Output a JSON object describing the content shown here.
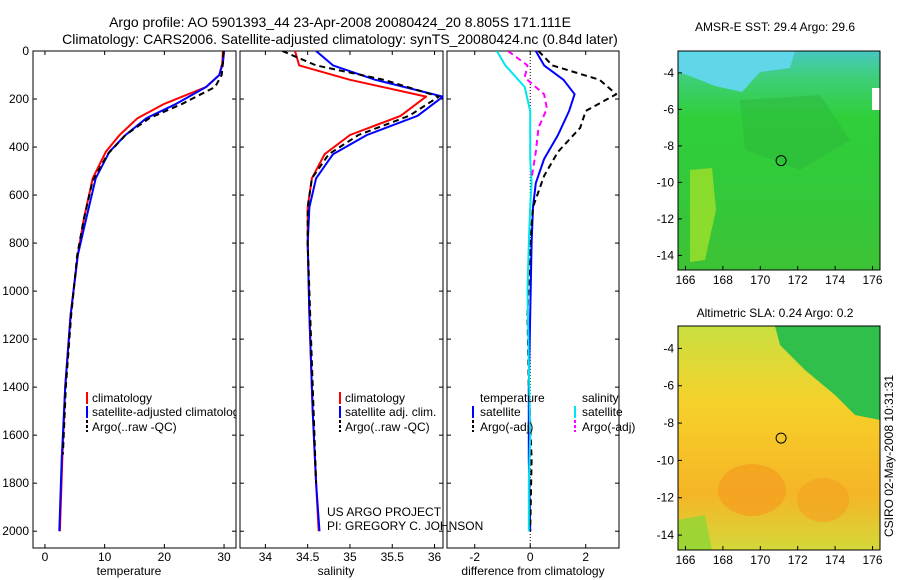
{
  "header": {
    "title_line1": "Argo profile: AO 5901393_44 23-Apr-2008 20080424_20 8.805S 171.111E",
    "title_line2": "Climatology: CARS2006. Satellite-adjusted climatology: synTS_20080424.nc (0.84d later)"
  },
  "credits": {
    "project": "US ARGO PROJECT",
    "pi": "PI: GREGORY C. JOHNSON",
    "stamp": "CSIRO 02-May-2008 10:31:31"
  },
  "colors": {
    "climatology": "#ff0000",
    "satellite": "#0000ff",
    "argo": "#000000",
    "salinity_satellite": "#00e5ee",
    "salinity_argo": "#ff00ff"
  },
  "chart_data": [
    {
      "id": "temperature",
      "type": "line",
      "xlabel": "temperature",
      "ylabel": "",
      "xlim": [
        -2,
        32
      ],
      "ylim": [
        0,
        2070
      ],
      "y_reversed": true,
      "xticks": [
        0,
        10,
        20,
        30
      ],
      "xtick_labels": [
        "0",
        "10",
        "20",
        "30"
      ],
      "yticks": [
        0,
        200,
        400,
        600,
        800,
        1000,
        1200,
        1400,
        1600,
        1800,
        2000
      ],
      "ytick_labels": [
        "0",
        "200",
        "400",
        "600",
        "800",
        "1000",
        "1200",
        "1400",
        "1600",
        "1800",
        "2000"
      ],
      "legend": {
        "position": "lower-center",
        "entries": [
          "climatology",
          "satellite-adjusted climatology",
          "Argo(..raw -QC)"
        ]
      },
      "series": [
        {
          "name": "climatology",
          "color": "#ff0000",
          "style": "solid",
          "x": [
            29.8,
            29.7,
            29.2,
            27.0,
            20.0,
            15.5,
            12.5,
            10.2,
            8.0,
            6.5,
            5.5,
            4.3,
            3.4,
            2.9,
            2.5
          ],
          "y": [
            0,
            50,
            100,
            150,
            220,
            280,
            350,
            420,
            530,
            700,
            850,
            1100,
            1400,
            1700,
            2000
          ]
        },
        {
          "name": "satellite-adjusted climatology",
          "color": "#0000ff",
          "style": "solid",
          "x": [
            30.0,
            29.8,
            29.2,
            27.0,
            22.0,
            17.0,
            13.5,
            10.8,
            8.5,
            6.9,
            5.5,
            4.3,
            3.4,
            2.8,
            2.4
          ],
          "y": [
            0,
            50,
            100,
            150,
            220,
            280,
            350,
            420,
            530,
            700,
            850,
            1100,
            1400,
            1700,
            2000
          ]
        },
        {
          "name": "Argo(..raw -QC)",
          "color": "#000000",
          "style": "dashed",
          "x": [
            29.9,
            29.8,
            29.6,
            28.5,
            23.0,
            17.5,
            13.5,
            10.5,
            8.0,
            6.5,
            5.4,
            4.4,
            3.5,
            3.0
          ],
          "y": [
            0,
            50,
            100,
            150,
            220,
            280,
            350,
            430,
            540,
            700,
            850,
            1100,
            1400,
            1680
          ]
        }
      ]
    },
    {
      "id": "salinity",
      "type": "line",
      "xlabel": "salinity",
      "ylabel": "",
      "xlim": [
        33.7,
        36.1
      ],
      "ylim": [
        0,
        2070
      ],
      "y_reversed": true,
      "xticks": [
        34,
        34.5,
        35,
        35.5,
        36
      ],
      "xtick_labels": [
        "34",
        "34.5",
        "35",
        "35.5",
        "36"
      ],
      "yticks": [
        0,
        200,
        400,
        600,
        800,
        1000,
        1200,
        1400,
        1600,
        1800,
        2000
      ],
      "legend": {
        "position": "lower-center",
        "entries": [
          "climatology",
          "satellite adj. clim.",
          "Argo(..raw -QC)"
        ]
      },
      "series": [
        {
          "name": "climatology",
          "color": "#ff0000",
          "style": "solid",
          "x": [
            34.35,
            34.4,
            35.0,
            35.9,
            35.6,
            35.0,
            34.7,
            34.55,
            34.5,
            34.5,
            34.52,
            34.56,
            34.6,
            34.63
          ],
          "y": [
            0,
            60,
            120,
            190,
            270,
            350,
            430,
            530,
            650,
            800,
            1100,
            1500,
            1800,
            2000
          ]
        },
        {
          "name": "satellite adj. clim.",
          "color": "#0000ff",
          "style": "solid",
          "x": [
            34.6,
            34.8,
            35.3,
            36.1,
            35.8,
            35.2,
            34.8,
            34.6,
            34.52,
            34.5,
            34.52,
            34.56,
            34.6,
            34.64
          ],
          "y": [
            0,
            60,
            120,
            190,
            270,
            350,
            430,
            530,
            650,
            800,
            1100,
            1500,
            1800,
            2000
          ]
        },
        {
          "name": "Argo(..raw -QC)",
          "color": "#000000",
          "style": "dashed",
          "x": [
            34.2,
            34.6,
            35.4,
            36.05,
            35.7,
            35.1,
            34.75,
            34.55,
            34.5,
            34.5,
            34.53,
            34.57,
            34.6
          ],
          "y": [
            0,
            60,
            120,
            190,
            270,
            350,
            430,
            530,
            650,
            800,
            1100,
            1500,
            1800
          ]
        }
      ]
    },
    {
      "id": "difference",
      "type": "line",
      "xlabel": "difference from climatology",
      "ylabel": "",
      "xlim": [
        -3,
        3.2
      ],
      "ylim": [
        0,
        2070
      ],
      "y_reversed": true,
      "xticks": [
        -2,
        0,
        2
      ],
      "xtick_labels": [
        "-2",
        "0",
        "2"
      ],
      "yticks": [
        0,
        200,
        400,
        600,
        800,
        1000,
        1200,
        1400,
        1600,
        1800,
        2000
      ],
      "legend": {
        "position": "lower-center",
        "headers": [
          "temperature",
          "salinity"
        ],
        "entries": [
          "satellite",
          "Argo(-adj)",
          "satellite",
          "Argo(-adj)"
        ]
      },
      "series": [
        {
          "name": "temperature satellite",
          "color": "#0000ff",
          "style": "solid",
          "x": [
            0.2,
            0.5,
            1.2,
            1.6,
            1.4,
            1.0,
            0.5,
            0.2,
            0.1,
            0.05,
            0.0,
            -0.05,
            -0.05,
            0.0
          ],
          "y": [
            0,
            60,
            120,
            180,
            250,
            350,
            450,
            550,
            650,
            800,
            1100,
            1400,
            1700,
            2000
          ]
        },
        {
          "name": "temperature Argo(-adj)",
          "color": "#000000",
          "style": "dashed",
          "x": [
            0.3,
            0.8,
            2.5,
            3.1,
            2.0,
            1.8,
            1.0,
            0.5,
            0.1,
            0.0,
            -0.1,
            -0.05,
            0.05,
            0.0
          ],
          "y": [
            0,
            60,
            120,
            180,
            250,
            320,
            420,
            520,
            650,
            800,
            1100,
            1400,
            1700,
            2000
          ]
        },
        {
          "name": "salinity satellite",
          "color": "#00e5ee",
          "style": "solid",
          "x": [
            -1.2,
            -0.9,
            -0.2,
            0.0,
            0.0,
            0.0,
            0.05,
            0.0,
            -0.05,
            -0.1,
            -0.05,
            0.0,
            -0.05,
            -0.05
          ],
          "y": [
            0,
            60,
            150,
            250,
            350,
            450,
            550,
            650,
            800,
            1000,
            1300,
            1600,
            1800,
            2000
          ]
        },
        {
          "name": "salinity Argo(-adj)",
          "color": "#ff00ff",
          "style": "dashed",
          "x": [
            -0.8,
            -0.1,
            -0.2,
            0.5,
            0.6,
            0.3,
            0.2,
            0.05
          ],
          "y": [
            0,
            60,
            110,
            180,
            240,
            320,
            420,
            530
          ]
        }
      ]
    },
    {
      "id": "sst_map",
      "type": "heatmap",
      "title": "AMSR-E SST: 29.4 Argo: 29.6",
      "xlim": [
        165.6,
        176.4
      ],
      "ylim": [
        -14.8,
        -2.8
      ],
      "xticks": [
        166,
        168,
        170,
        172,
        174,
        176
      ],
      "xtick_labels": [
        "166",
        "168",
        "170",
        "172",
        "174",
        "176"
      ],
      "yticks": [
        -4,
        -6,
        -8,
        -10,
        -12,
        -14
      ],
      "ytick_labels": [
        "-4",
        "-6",
        "-8",
        "-10",
        "-12",
        "-14"
      ],
      "marker": {
        "lon": 171.111,
        "lat": -8.805
      }
    },
    {
      "id": "sla_map",
      "type": "heatmap",
      "title": "Altimetric SLA: 0.24 Argo: 0.2",
      "xlim": [
        165.6,
        176.4
      ],
      "ylim": [
        -14.8,
        -2.8
      ],
      "xticks": [
        166,
        168,
        170,
        172,
        174,
        176
      ],
      "xtick_labels": [
        "166",
        "168",
        "170",
        "172",
        "174",
        "176"
      ],
      "yticks": [
        -4,
        -6,
        -8,
        -10,
        -12,
        -14
      ],
      "ytick_labels": [
        "-4",
        "-6",
        "-8",
        "-10",
        "-12",
        "-14"
      ],
      "marker": {
        "lon": 171.111,
        "lat": -8.805
      }
    }
  ]
}
